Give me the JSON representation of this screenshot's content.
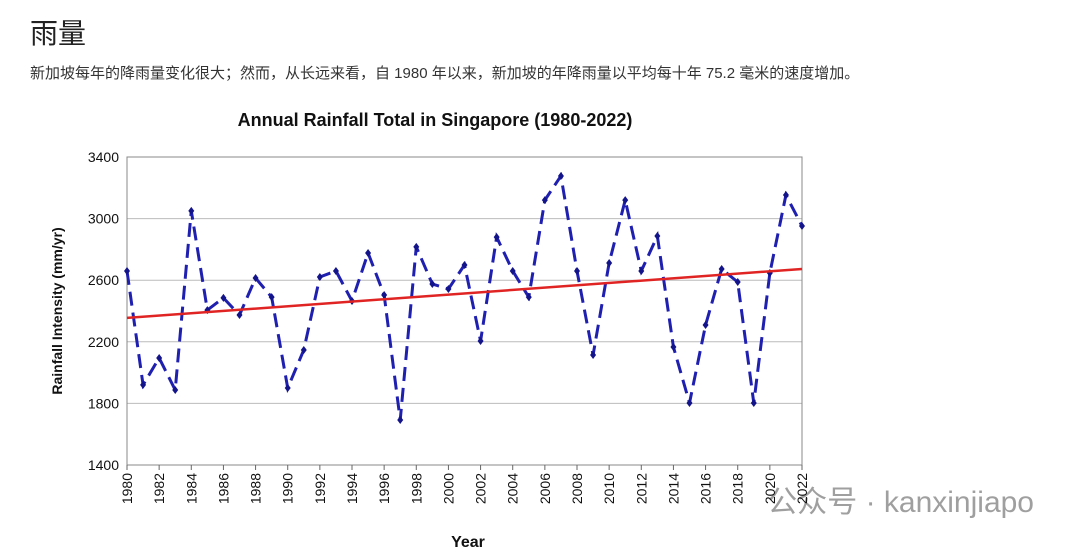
{
  "header": {
    "title": "雨量",
    "description": "新加坡每年的降雨量变化很大；然而，从长远来看，自 1980 年以来，新加坡的年降雨量以平均每十年 75.2 毫米的速度增加。"
  },
  "watermark": "公众号 · kanxinjiapo",
  "chart_data": {
    "type": "line",
    "title": "Annual Rainfall Total in Singapore (1980-2022)",
    "x_label": "Year",
    "y_label": "Rainfall Intensity (mm/yr)",
    "x": [
      1980,
      1981,
      1982,
      1983,
      1984,
      1985,
      1986,
      1987,
      1988,
      1989,
      1990,
      1991,
      1992,
      1993,
      1994,
      1995,
      1996,
      1997,
      1998,
      1999,
      2000,
      2001,
      2002,
      2003,
      2004,
      2005,
      2006,
      2007,
      2008,
      2009,
      2010,
      2011,
      2012,
      2013,
      2014,
      2015,
      2016,
      2017,
      2018,
      2019,
      2020,
      2021,
      2022
    ],
    "series": [
      {
        "color": "#1f1fb0",
        "values": [
          2660,
          1920,
          2095,
          1887,
          3050,
          2406,
          2485,
          2374,
          2614,
          2490,
          1900,
          2147,
          2621,
          2660,
          2465,
          2777,
          2504,
          1692,
          2816,
          2575,
          2543,
          2699,
          2205,
          2880,
          2660,
          2490,
          3120,
          3277,
          2660,
          2114,
          2712,
          3120,
          2660,
          2887,
          2166,
          1803,
          2309,
          2673,
          2588,
          1803,
          2647,
          3153,
          2952
        ]
      }
    ],
    "trendline": {
      "x": [
        1980,
        2022
      ],
      "values": [
        2355,
        2673
      ],
      "color": "#e02424"
    },
    "xlim": [
      1980,
      2022
    ],
    "xticks": [
      1980,
      1982,
      1984,
      1986,
      1988,
      1990,
      1992,
      1994,
      1996,
      1998,
      2000,
      2002,
      2004,
      2006,
      2008,
      2010,
      2012,
      2014,
      2016,
      2018,
      2020,
      2022
    ],
    "ylim": [
      1400,
      3400
    ],
    "yticks": [
      1400,
      1800,
      2200,
      2600,
      3000,
      3400
    ],
    "grid": true
  }
}
